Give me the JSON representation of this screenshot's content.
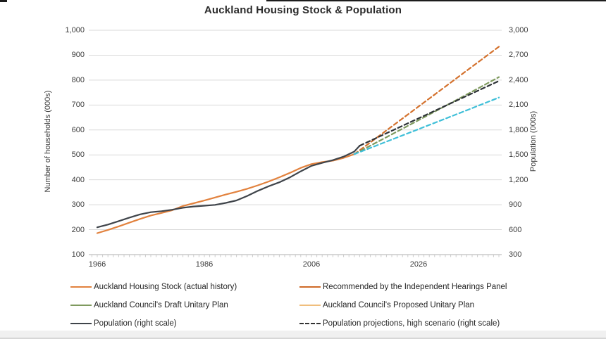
{
  "chart_data": {
    "type": "line",
    "title": "Auckland Housing Stock & Population",
    "grid": true,
    "left_axis": {
      "label": "Number of households (000s)",
      "range": [
        100,
        1000
      ],
      "tick_values": [
        100,
        200,
        300,
        400,
        500,
        600,
        700,
        800,
        900,
        1000
      ],
      "tick_labels": [
        "100",
        "200",
        "300",
        "400",
        "500",
        "600",
        "700",
        "800",
        "900",
        "1,000"
      ]
    },
    "right_axis": {
      "label": "Population (000s)",
      "range": [
        300,
        3000
      ],
      "tick_values": [
        300,
        600,
        900,
        1200,
        1500,
        1800,
        2100,
        2400,
        2700,
        3000
      ],
      "tick_labels": [
        "300",
        "600",
        "900",
        "1,200",
        "1,500",
        "1,800",
        "2,100",
        "2,400",
        "2,700",
        "3,000"
      ]
    },
    "x_axis": {
      "range": [
        1965,
        2041
      ],
      "tick_values": [
        1966,
        1986,
        2006,
        2026
      ],
      "tick_labels": [
        "1966",
        "1986",
        "2006",
        "2026"
      ],
      "minor_ticks_every_year": true
    },
    "series": [
      {
        "id": "housing-stock-actual",
        "name": "Auckland Housing Stock (actual history)",
        "scale": "left",
        "color": "#E2823E",
        "dash": null,
        "points": [
          [
            1966,
            186
          ],
          [
            1968,
            199
          ],
          [
            1970,
            213
          ],
          [
            1972,
            228
          ],
          [
            1974,
            243
          ],
          [
            1976,
            257
          ],
          [
            1978,
            267
          ],
          [
            1980,
            278
          ],
          [
            1982,
            295
          ],
          [
            1984,
            306
          ],
          [
            1986,
            317
          ],
          [
            1988,
            329
          ],
          [
            1990,
            341
          ],
          [
            1992,
            352
          ],
          [
            1994,
            364
          ],
          [
            1996,
            378
          ],
          [
            1998,
            393
          ],
          [
            2000,
            410
          ],
          [
            2002,
            428
          ],
          [
            2004,
            448
          ],
          [
            2006,
            463
          ],
          [
            2008,
            471
          ],
          [
            2010,
            477
          ],
          [
            2012,
            488
          ],
          [
            2014,
            503
          ]
        ]
      },
      {
        "id": "population-actual",
        "name": "Population (right scale)",
        "scale": "right",
        "color": "#3F444A",
        "dash": null,
        "points": [
          [
            1966,
            628
          ],
          [
            1968,
            661
          ],
          [
            1970,
            703
          ],
          [
            1972,
            745
          ],
          [
            1974,
            784
          ],
          [
            1976,
            810
          ],
          [
            1978,
            822
          ],
          [
            1980,
            840
          ],
          [
            1982,
            864
          ],
          [
            1984,
            879
          ],
          [
            1986,
            888
          ],
          [
            1988,
            898
          ],
          [
            1990,
            922
          ],
          [
            1992,
            952
          ],
          [
            1994,
            1006
          ],
          [
            1996,
            1068
          ],
          [
            1998,
            1122
          ],
          [
            2000,
            1170
          ],
          [
            2002,
            1230
          ],
          [
            2004,
            1302
          ],
          [
            2006,
            1368
          ],
          [
            2008,
            1404
          ],
          [
            2010,
            1437
          ],
          [
            2012,
            1479
          ],
          [
            2014,
            1540
          ],
          [
            2015,
            1610
          ]
        ]
      },
      {
        "id": "ihp-recommended",
        "name": "Recommended by the Independent Hearings Panel",
        "scale": "left",
        "color": "#D4722E",
        "dash": "6 4",
        "points": [
          [
            2014,
            503
          ],
          [
            2017,
            550
          ],
          [
            2020,
            598
          ],
          [
            2025,
            678
          ],
          [
            2030,
            758
          ],
          [
            2035,
            838
          ],
          [
            2041,
            934
          ]
        ]
      },
      {
        "id": "draft-unitary-plan",
        "name": "Auckland Council's Draft Unitary Plan",
        "scale": "left",
        "color": "#7F9A5F",
        "dash": "6 4",
        "points": [
          [
            2014,
            503
          ],
          [
            2017,
            537
          ],
          [
            2020,
            571
          ],
          [
            2025,
            628
          ],
          [
            2030,
            685
          ],
          [
            2035,
            742
          ],
          [
            2041,
            812
          ]
        ]
      },
      {
        "id": "proposed-unitary-plan",
        "name": "Auckland Council's Proposed Unitary Plan",
        "scale": "left",
        "color": "#3FBFD8",
        "dash": "6 4",
        "points": [
          [
            2014,
            503
          ],
          [
            2017,
            528
          ],
          [
            2020,
            553
          ],
          [
            2025,
            595
          ],
          [
            2030,
            637
          ],
          [
            2035,
            679
          ],
          [
            2041,
            730
          ]
        ]
      },
      {
        "id": "population-projection-high",
        "name": "Population projections, high scenario (right scale)",
        "scale": "right",
        "color": "#2E3337",
        "dash": "6 4",
        "points": [
          [
            2015,
            1610
          ],
          [
            2020,
            1760
          ],
          [
            2025,
            1910
          ],
          [
            2030,
            2060
          ],
          [
            2035,
            2210
          ],
          [
            2041,
            2390
          ]
        ]
      }
    ],
    "legend": {
      "position": "bottom",
      "entries": [
        {
          "label": "Auckland Housing Stock (actual history)",
          "swatch_color": "#E2823E",
          "swatch_dashed": false
        },
        {
          "label": "Auckland Council's Draft Unitary Plan",
          "swatch_color": "#7F9A5F",
          "swatch_dashed": false
        },
        {
          "label": "Population (right scale)",
          "swatch_color": "#3F444A",
          "swatch_dashed": false
        },
        {
          "label": "Recommended by the Independent Hearings Panel",
          "swatch_color": "#CF6A27",
          "swatch_dashed": false
        },
        {
          "label": "Auckland Council's Proposed Unitary Plan",
          "swatch_color": "#F0BE7D",
          "swatch_dashed": false
        },
        {
          "label": "Population projections, high scenario (right scale)",
          "swatch_color": "#333333",
          "swatch_dashed": true
        }
      ]
    },
    "colors": {
      "gridline": "#D9D9D9",
      "axis_line": "#AFAFAF",
      "minor_tick": "#C9C9C9",
      "tick_text": "#3C3C3C",
      "title_text": "#2B2B2B"
    }
  }
}
